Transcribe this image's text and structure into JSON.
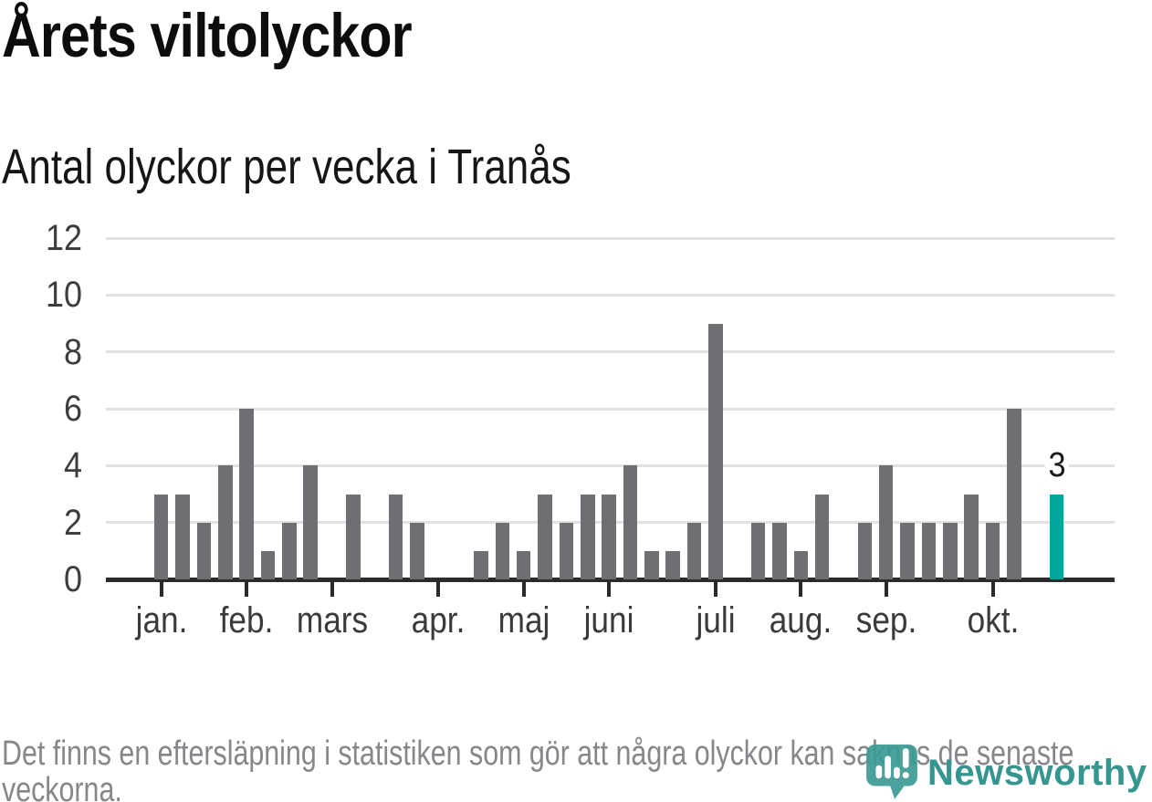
{
  "header": {
    "title": "Årets viltolyckor",
    "subtitle": "Antal olyckor per vecka i Tranås"
  },
  "chart_data": {
    "type": "bar",
    "title": "Årets viltolyckor",
    "subtitle": "Antal olyckor per vecka i Tranås",
    "x_unit": "vecka (week number, 1-43)",
    "values": [
      3,
      3,
      2,
      4,
      6,
      1,
      2,
      4,
      0,
      3,
      0,
      3,
      2,
      0,
      0,
      1,
      2,
      1,
      3,
      2,
      3,
      3,
      4,
      1,
      1,
      2,
      9,
      0,
      2,
      2,
      1,
      3,
      0,
      2,
      4,
      2,
      2,
      2,
      3,
      2,
      6,
      0,
      3
    ],
    "highlight": {
      "week": 43,
      "value": 3,
      "label": "3"
    },
    "month_ticks": [
      {
        "label": "jan.",
        "week": 1
      },
      {
        "label": "feb.",
        "week": 5
      },
      {
        "label": "mars",
        "week": 9
      },
      {
        "label": "apr.",
        "week": 14
      },
      {
        "label": "maj",
        "week": 18
      },
      {
        "label": "juni",
        "week": 22
      },
      {
        "label": "juli",
        "week": 27
      },
      {
        "label": "aug.",
        "week": 31
      },
      {
        "label": "sep.",
        "week": 35
      },
      {
        "label": "okt.",
        "week": 40
      }
    ],
    "yticks": [
      0,
      2,
      4,
      6,
      8,
      10,
      12
    ],
    "ylim": [
      0,
      12
    ],
    "xlabel": "",
    "ylabel": "",
    "grid": true,
    "legend": "none",
    "colors": {
      "bar": "#6e6e73",
      "highlight": "#00a69c",
      "grid": "#e1e1e1",
      "axis": "#2b2b2b",
      "tick_label": "#3d3d3d",
      "annotation": "#1a1a1a"
    }
  },
  "footer": {
    "note": "Det finns en eftersläpning i statistiken som gör att några olyckor kan saknas de senaste veckorna.",
    "logo_text": "Newsworthy",
    "logo_color": "#3c9b94"
  }
}
